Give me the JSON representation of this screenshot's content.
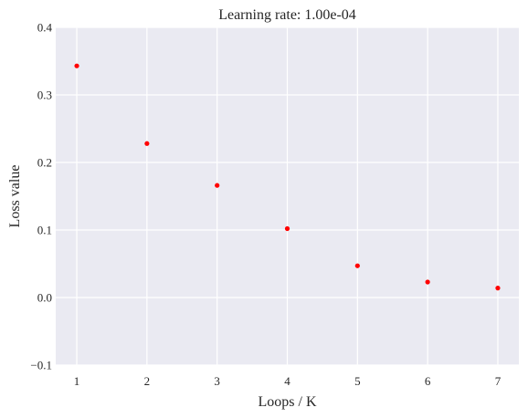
{
  "chart_data": {
    "type": "scatter",
    "title": "Learning rate: 1.00e-04",
    "xlabel": "Loops / K",
    "ylabel": "Loss value",
    "xlim": [
      0.7,
      7.3
    ],
    "ylim": [
      -0.1,
      0.4
    ],
    "xticks": [
      1,
      2,
      3,
      4,
      5,
      6,
      7
    ],
    "xtick_labels": [
      "1",
      "2",
      "3",
      "4",
      "5",
      "6",
      "7"
    ],
    "yticks": [
      -0.1,
      0.0,
      0.1,
      0.2,
      0.3,
      0.4
    ],
    "ytick_labels": [
      "−0.1",
      "0.0",
      "0.1",
      "0.2",
      "0.3",
      "0.4"
    ],
    "grid": true,
    "series": [
      {
        "x": [
          1,
          2,
          3,
          4,
          5,
          6,
          7
        ],
        "y": [
          0.343,
          0.228,
          0.166,
          0.102,
          0.047,
          0.023,
          0.014
        ]
      }
    ]
  },
  "colors": {
    "plot_background": "#eaeaf2",
    "grid": "#ffffff",
    "marker": "#ff0000",
    "text": "#262626"
  }
}
